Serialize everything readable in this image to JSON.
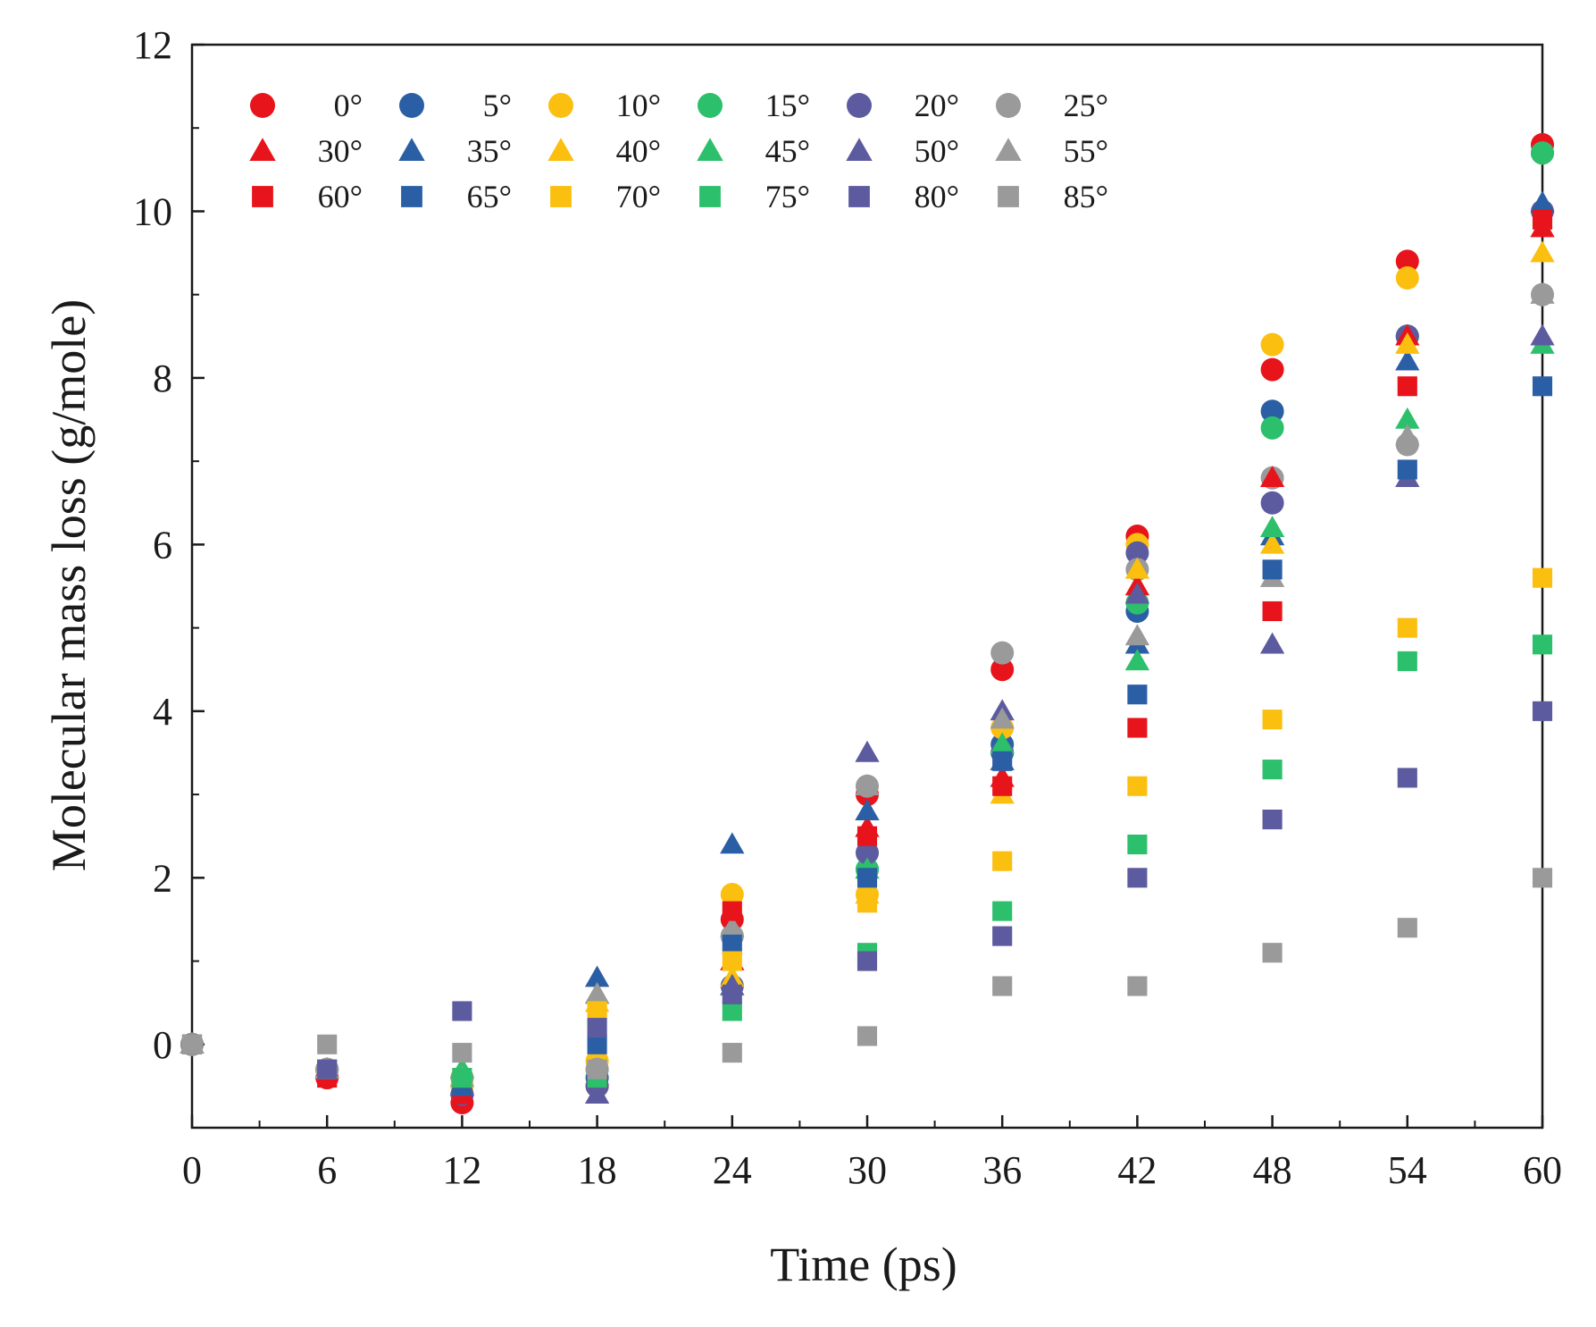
{
  "chart_data": {
    "type": "scatter",
    "title": "",
    "xlabel": "Time (ps)",
    "ylabel": "Molecular mass loss (g/mole)",
    "xlim": [
      0,
      60
    ],
    "ylim": [
      -1,
      12
    ],
    "xticks": [
      0,
      6,
      12,
      18,
      24,
      30,
      36,
      42,
      48,
      54,
      60
    ],
    "yticks": [
      0,
      2,
      4,
      6,
      8,
      10,
      12
    ],
    "x": [
      0,
      6,
      12,
      18,
      24,
      30,
      36,
      42,
      48,
      54,
      60
    ],
    "legend_position": "top-left",
    "series": [
      {
        "name": "0°",
        "marker": "circle",
        "color": "#e8141b",
        "values": [
          0,
          -0.4,
          -0.7,
          -0.5,
          1.5,
          3.0,
          4.5,
          6.1,
          8.1,
          9.4,
          10.8
        ]
      },
      {
        "name": "5°",
        "marker": "circle",
        "color": "#2b5fa5",
        "values": [
          0,
          -0.3,
          -0.6,
          -0.4,
          1.3,
          2.1,
          3.6,
          5.2,
          7.6,
          8.5,
          10.7
        ]
      },
      {
        "name": "10°",
        "marker": "circle",
        "color": "#fbbf0f",
        "values": [
          0,
          -0.3,
          -0.5,
          -0.2,
          1.8,
          1.8,
          3.8,
          6.0,
          8.4,
          9.2,
          10.7
        ]
      },
      {
        "name": "15°",
        "marker": "circle",
        "color": "#2cbf6c",
        "values": [
          0,
          -0.3,
          -0.4,
          -0.3,
          0.7,
          2.1,
          3.5,
          5.3,
          7.4,
          8.5,
          10.7
        ]
      },
      {
        "name": "20°",
        "marker": "circle",
        "color": "#5d5b9f",
        "values": [
          0,
          -0.3,
          -0.6,
          -0.5,
          0.7,
          2.3,
          3.5,
          5.9,
          6.5,
          8.5,
          10.0
        ]
      },
      {
        "name": "25°",
        "marker": "circle",
        "color": "#9a9a9a",
        "values": [
          0,
          -0.3,
          -0.4,
          -0.3,
          1.3,
          3.1,
          4.7,
          5.7,
          6.8,
          7.2,
          9.0
        ]
      },
      {
        "name": "30°",
        "marker": "triangle",
        "color": "#e8141b",
        "values": [
          0,
          -0.3,
          -0.5,
          0.6,
          1.0,
          2.6,
          3.2,
          5.5,
          6.8,
          8.5,
          9.8
        ]
      },
      {
        "name": "35°",
        "marker": "triangle",
        "color": "#2b5fa5",
        "values": [
          0,
          -0.3,
          -0.5,
          0.8,
          2.4,
          2.8,
          3.4,
          4.8,
          6.1,
          8.2,
          10.1
        ]
      },
      {
        "name": "40°",
        "marker": "triangle",
        "color": "#fbbf0f",
        "values": [
          0,
          -0.3,
          -0.4,
          0.5,
          0.8,
          1.8,
          3.0,
          5.7,
          6.0,
          8.4,
          9.5
        ]
      },
      {
        "name": "45°",
        "marker": "triangle",
        "color": "#2cbf6c",
        "values": [
          0,
          -0.3,
          -0.3,
          0.6,
          0.7,
          2.1,
          3.6,
          4.6,
          6.2,
          7.5,
          8.4
        ]
      },
      {
        "name": "50°",
        "marker": "triangle",
        "color": "#5d5b9f",
        "values": [
          0,
          -0.3,
          -0.5,
          -0.6,
          0.7,
          3.5,
          4.0,
          5.4,
          4.8,
          6.8,
          8.5
        ]
      },
      {
        "name": "55°",
        "marker": "triangle",
        "color": "#9a9a9a",
        "values": [
          0,
          -0.3,
          -0.4,
          0.6,
          1.4,
          3.1,
          3.9,
          4.9,
          5.6,
          7.3,
          9.0
        ]
      },
      {
        "name": "60°",
        "marker": "square",
        "color": "#e8141b",
        "values": [
          0,
          -0.4,
          -0.6,
          -0.4,
          1.6,
          2.5,
          3.1,
          3.8,
          5.2,
          7.9,
          9.9
        ]
      },
      {
        "name": "65°",
        "marker": "square",
        "color": "#2b5fa5",
        "values": [
          0,
          -0.3,
          -0.5,
          0.0,
          1.2,
          2.0,
          3.4,
          4.2,
          5.7,
          6.9,
          7.9
        ]
      },
      {
        "name": "70°",
        "marker": "square",
        "color": "#fbbf0f",
        "values": [
          0,
          -0.3,
          -0.4,
          0.4,
          1.0,
          1.7,
          2.2,
          3.1,
          3.9,
          5.0,
          5.6
        ]
      },
      {
        "name": "75°",
        "marker": "square",
        "color": "#2cbf6c",
        "values": [
          0,
          -0.3,
          -0.4,
          -0.4,
          0.4,
          1.1,
          1.6,
          2.4,
          3.3,
          4.6,
          4.8
        ]
      },
      {
        "name": "80°",
        "marker": "square",
        "color": "#5d5b9f",
        "values": [
          0,
          -0.3,
          0.4,
          0.2,
          0.6,
          1.0,
          1.3,
          2.0,
          2.7,
          3.2,
          4.0
        ]
      },
      {
        "name": "85°",
        "marker": "square",
        "color": "#9a9a9a",
        "values": [
          0,
          0.0,
          -0.1,
          -0.3,
          -0.1,
          0.1,
          0.7,
          0.7,
          1.1,
          1.4,
          2.0
        ]
      }
    ]
  }
}
